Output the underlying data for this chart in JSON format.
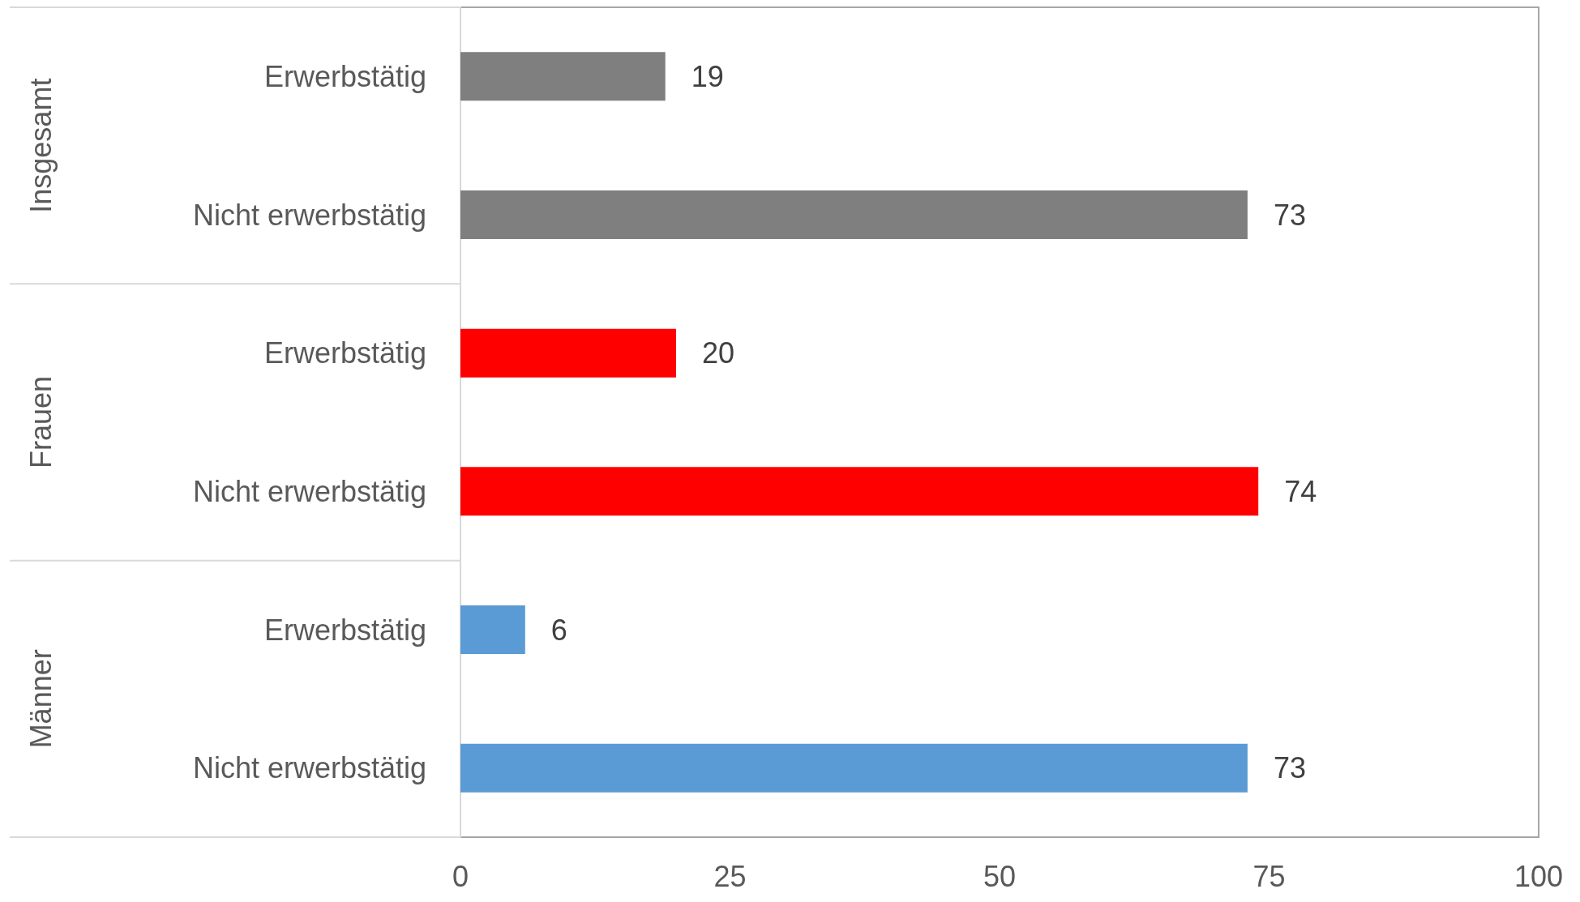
{
  "chart_data": {
    "type": "bar",
    "orientation": "horizontal",
    "categories": [
      "Erwerbstätig",
      "Nicht erwerbstätig",
      "Erwerbstätig",
      "Nicht erwerbstätig",
      "Erwerbstätig",
      "Nicht erwerbstätig"
    ],
    "values": [
      19,
      73,
      20,
      74,
      6,
      73
    ],
    "colors": [
      "#7f7f7f",
      "#7f7f7f",
      "#ff0000",
      "#ff0000",
      "#5b9bd5",
      "#5b9bd5"
    ],
    "xlim": [
      0,
      100
    ],
    "xticks": [
      0,
      25,
      50,
      75,
      100
    ],
    "data_labels": true,
    "annotations": [
      "Insgesamt",
      "Frauen",
      "Männer"
    ]
  }
}
